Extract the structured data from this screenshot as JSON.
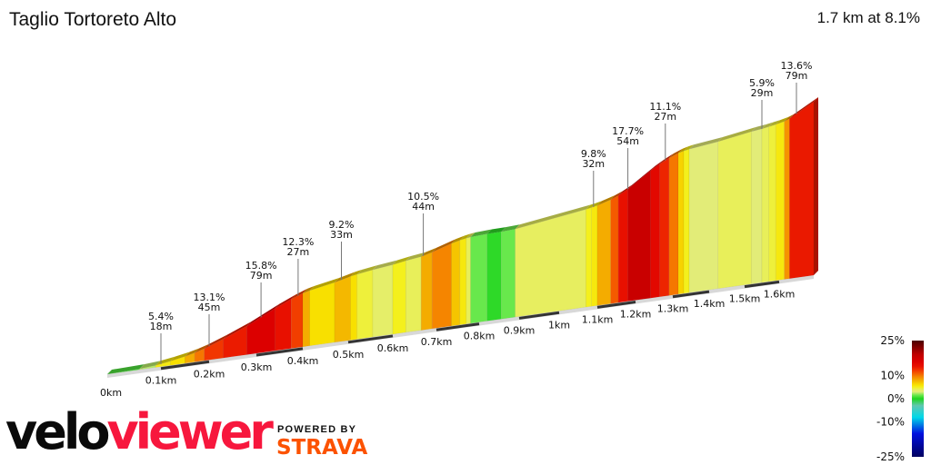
{
  "header": {
    "title": "Taglio Tortoreto Alto",
    "summary": "1.7 km at 8.1%"
  },
  "branding": {
    "velo": "velo",
    "viewer": "viewer",
    "powered_by": "POWERED BY",
    "strava": "STRAVA",
    "velo_color": "#0a0a0a",
    "viewer_color": "#f7173d",
    "strava_color": "#fc5200"
  },
  "chart_data": {
    "type": "area",
    "title": "Taglio Tortoreto Alto",
    "x_unit": "km",
    "xlim": [
      0,
      1.7
    ],
    "x_ticks": [
      "0km",
      "0.1km",
      "0.2km",
      "0.3km",
      "0.4km",
      "0.5km",
      "0.6km",
      "0.7km",
      "0.8km",
      "0.9km",
      "1km",
      "1.1km",
      "1.2km",
      "1.3km",
      "1.4km",
      "1.5km",
      "1.6km"
    ],
    "segments": [
      [
        0,
        0.06,
        1
      ],
      [
        0.06,
        0.09,
        2.5
      ],
      [
        0.09,
        0.12,
        5.4
      ],
      [
        0.12,
        0.15,
        6
      ],
      [
        0.15,
        0.17,
        8
      ],
      [
        0.17,
        0.19,
        10
      ],
      [
        0.19,
        0.23,
        12.3
      ],
      [
        0.23,
        0.28,
        13.5
      ],
      [
        0.28,
        0.34,
        16
      ],
      [
        0.34,
        0.375,
        14
      ],
      [
        0.375,
        0.4,
        12
      ],
      [
        0.4,
        0.415,
        8
      ],
      [
        0.415,
        0.47,
        6
      ],
      [
        0.47,
        0.505,
        7.5
      ],
      [
        0.505,
        0.52,
        6
      ],
      [
        0.52,
        0.555,
        4.5
      ],
      [
        0.555,
        0.6,
        3.5
      ],
      [
        0.6,
        0.63,
        5
      ],
      [
        0.63,
        0.665,
        4
      ],
      [
        0.665,
        0.69,
        8
      ],
      [
        0.69,
        0.735,
        9.5
      ],
      [
        0.735,
        0.755,
        7
      ],
      [
        0.755,
        0.77,
        5.5
      ],
      [
        0.77,
        0.78,
        4
      ],
      [
        0.78,
        0.82,
        1.5
      ],
      [
        0.82,
        0.855,
        0.3
      ],
      [
        0.855,
        0.89,
        1.5
      ],
      [
        0.89,
        1.07,
        3.8
      ],
      [
        1.07,
        1.085,
        5
      ],
      [
        1.085,
        1.1,
        5.5
      ],
      [
        1.1,
        1.135,
        8
      ],
      [
        1.135,
        1.155,
        11
      ],
      [
        1.155,
        1.18,
        14
      ],
      [
        1.18,
        1.24,
        18
      ],
      [
        1.24,
        1.265,
        15
      ],
      [
        1.265,
        1.29,
        13
      ],
      [
        1.29,
        1.315,
        10
      ],
      [
        1.315,
        1.33,
        6.5
      ],
      [
        1.33,
        1.345,
        5
      ],
      [
        1.345,
        1.425,
        3
      ],
      [
        1.425,
        1.52,
        4
      ],
      [
        1.52,
        1.55,
        3
      ],
      [
        1.55,
        1.57,
        4
      ],
      [
        1.57,
        1.59,
        4.5
      ],
      [
        1.59,
        1.615,
        5.5
      ],
      [
        1.615,
        1.63,
        9
      ],
      [
        1.63,
        1.7,
        13.6
      ]
    ],
    "annotations": [
      {
        "km": 0.1,
        "gradient": "5.4%",
        "length": "18m"
      },
      {
        "km": 0.2,
        "gradient": "13.1%",
        "length": "45m"
      },
      {
        "km": 0.31,
        "gradient": "15.8%",
        "length": "79m"
      },
      {
        "km": 0.39,
        "gradient": "12.3%",
        "length": "27m"
      },
      {
        "km": 0.485,
        "gradient": "9.2%",
        "length": "33m"
      },
      {
        "km": 0.67,
        "gradient": "10.5%",
        "length": "44m"
      },
      {
        "km": 1.09,
        "gradient": "9.8%",
        "length": "32m"
      },
      {
        "km": 1.18,
        "gradient": "17.7%",
        "length": "54m"
      },
      {
        "km": 1.28,
        "gradient": "11.1%",
        "length": "27m"
      },
      {
        "km": 1.55,
        "gradient": "5.9%",
        "length": "29m"
      },
      {
        "km": 1.65,
        "gradient": "13.6%",
        "length": "79m"
      }
    ],
    "colorbar": {
      "range": [
        -25,
        25
      ],
      "tick_labels": [
        "25%",
        "10%",
        "0%",
        "-10%",
        "-25%"
      ],
      "tick_values": [
        25,
        10,
        0,
        -10,
        -25
      ],
      "stops": [
        [
          -25,
          "#000060"
        ],
        [
          -15,
          "#0010e0"
        ],
        [
          -8,
          "#00d8e8"
        ],
        [
          -3,
          "#60c8b0"
        ],
        [
          0,
          "#1fd51f"
        ],
        [
          1.5,
          "#68e84c"
        ],
        [
          3,
          "#e2ec78"
        ],
        [
          4,
          "#e8ef5a"
        ],
        [
          5,
          "#f4f01c"
        ],
        [
          6,
          "#f8e000"
        ],
        [
          7.5,
          "#f4b800"
        ],
        [
          9,
          "#f59300"
        ],
        [
          11,
          "#f45a00"
        ],
        [
          12.5,
          "#f03000"
        ],
        [
          14,
          "#e81000"
        ],
        [
          16,
          "#dc0000"
        ],
        [
          19,
          "#c00000"
        ],
        [
          25,
          "#4a0000"
        ]
      ]
    }
  }
}
